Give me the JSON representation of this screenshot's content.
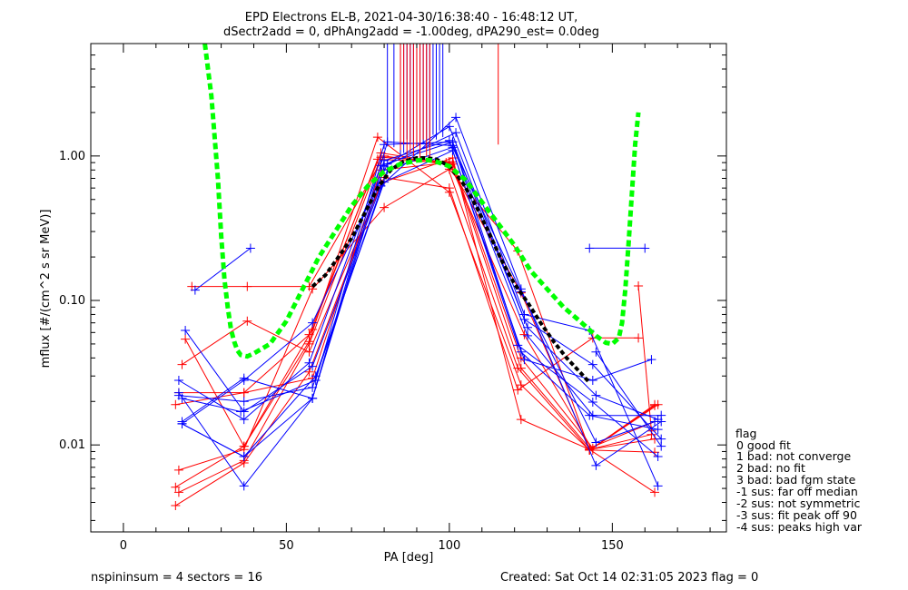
{
  "chart_data": {
    "type": "line",
    "title": "EPD Electrons EL-B, 2021-04-30/16:38:40 - 16:48:12 UT,",
    "subtitle": "dSectr2add = 0, dPhAng2add = -1.00deg, dPA290_est=   0.0deg",
    "xlabel": "PA [deg]",
    "ylabel": "mflux [#/(cm^2 s sr MeV)]",
    "xlim": [
      -10,
      185
    ],
    "ylim": [
      0.0025,
      6.0
    ],
    "yscale": "log",
    "x_ticks": [
      0,
      50,
      100,
      150
    ],
    "x_tick_labels": [
      "0",
      "50",
      "100",
      "150"
    ],
    "y_ticks": [
      0.01,
      0.1,
      1.0
    ],
    "y_tick_labels": [
      "0.01",
      "0.10",
      "1.00"
    ],
    "legend_title": "flag",
    "legend": [
      " 0 good fit",
      " 1 bad: not converge",
      " 2 bad: no fit",
      " 3 bad: bad fgm state",
      "-1 sus: far off median",
      "-2 sus: not symmetric",
      "-3 sus: fit peak off 90",
      "-4 sus: peaks high var"
    ],
    "colors": {
      "red": "#ff0000",
      "blue": "#0000ff",
      "green": "#00ff00",
      "black": "#000000"
    },
    "series_red": [
      [
        [
          16,
          0.0051
        ],
        [
          37,
          0.0098
        ],
        [
          57,
          0.052
        ],
        [
          78,
          1.35
        ],
        [
          100,
          0.56
        ],
        [
          122,
          0.026
        ],
        [
          143,
          0.0092
        ],
        [
          163,
          0.019
        ]
      ],
      [
        [
          16,
          0.019
        ],
        [
          37,
          0.023
        ],
        [
          57,
          0.058
        ],
        [
          79,
          1.05
        ],
        [
          101,
          0.88
        ],
        [
          122,
          0.034
        ],
        [
          143,
          0.0095
        ],
        [
          163,
          0.0145
        ]
      ],
      [
        [
          16,
          0.0038
        ],
        [
          37,
          0.0075
        ],
        [
          57,
          0.032
        ],
        [
          79,
          0.65
        ],
        [
          101,
          0.97
        ],
        [
          122,
          0.015
        ],
        [
          143,
          0.0093
        ],
        [
          163,
          0.0047
        ]
      ],
      [
        [
          17,
          0.0067
        ],
        [
          37,
          0.0093
        ],
        [
          58,
          0.12
        ],
        [
          80,
          0.44
        ],
        [
          100,
          0.81
        ],
        [
          121,
          0.22
        ],
        [
          143,
          0.0093
        ],
        [
          163,
          0.011
        ]
      ],
      [
        [
          17,
          0.0047
        ],
        [
          37,
          0.0078
        ],
        [
          57,
          0.05
        ],
        [
          79,
          0.98
        ],
        [
          101,
          0.91
        ],
        [
          122,
          0.04
        ],
        [
          144,
          0.0095
        ],
        [
          164,
          0.019
        ]
      ],
      [
        [
          18,
          0.036
        ],
        [
          38,
          0.072
        ],
        [
          57,
          0.044
        ],
        [
          80,
          0.71
        ],
        [
          100,
          0.6
        ],
        [
          121,
          0.024
        ],
        [
          144,
          0.055
        ],
        [
          158,
          0.055
        ]
      ],
      [
        [
          21,
          0.125
        ],
        [
          38,
          0.125
        ],
        [
          57,
          0.125
        ],
        [
          80,
          1.0
        ],
        [
          100,
          0.87
        ],
        [
          122,
          0.113
        ],
        [
          143,
          0.0093
        ],
        [
          162,
          0.0118
        ]
      ],
      [
        [
          19,
          0.054
        ],
        [
          37,
          0.0098
        ],
        [
          58,
          0.063
        ],
        [
          78,
          0.95
        ],
        [
          99,
          0.9
        ],
        [
          121,
          0.034
        ],
        [
          143,
          0.0092
        ],
        [
          163,
          0.0187
        ]
      ],
      [
        [
          17,
          0.023
        ],
        [
          37,
          0.023
        ],
        [
          58,
          0.029
        ],
        [
          79,
          0.8
        ],
        [
          100,
          0.9
        ],
        [
          123,
          0.058
        ],
        [
          144,
          0.0092
        ],
        [
          163,
          0.0089
        ]
      ],
      [
        [
          158,
          0.126
        ],
        [
          162,
          0.0125
        ]
      ]
    ],
    "series_blue": [
      [
        [
          17,
          0.023
        ],
        [
          37,
          0.0052
        ],
        [
          58,
          0.021
        ],
        [
          80,
          0.93
        ],
        [
          100,
          1.28
        ],
        [
          121,
          0.049
        ],
        [
          144,
          0.0198
        ],
        [
          164,
          0.0083
        ]
      ],
      [
        [
          18,
          0.014
        ],
        [
          37,
          0.0083
        ],
        [
          58,
          0.021
        ],
        [
          80,
          0.85
        ],
        [
          102,
          1.45
        ],
        [
          123,
          0.08
        ],
        [
          143,
          0.062
        ],
        [
          164,
          0.0052
        ]
      ],
      [
        [
          18,
          0.0145
        ],
        [
          37,
          0.029
        ],
        [
          58,
          0.021
        ],
        [
          81,
          1.25
        ],
        [
          101,
          1.18
        ],
        [
          124,
          0.057
        ],
        [
          144,
          0.016
        ],
        [
          165,
          0.016
        ]
      ],
      [
        [
          19,
          0.062
        ],
        [
          37,
          0.017
        ],
        [
          58,
          0.035
        ],
        [
          79,
          0.62
        ],
        [
          102,
          1.85
        ],
        [
          122,
          0.12
        ],
        [
          145,
          0.0072
        ],
        [
          165,
          0.0145
        ]
      ],
      [
        [
          17,
          0.028
        ],
        [
          37,
          0.015
        ],
        [
          57,
          0.037
        ],
        [
          79,
          0.86
        ],
        [
          101,
          1.25
        ],
        [
          123,
          0.074
        ],
        [
          144,
          0.036
        ],
        [
          165,
          0.011
        ]
      ],
      [
        [
          17,
          0.022
        ],
        [
          37,
          0.02
        ],
        [
          58,
          0.025
        ],
        [
          81,
          0.8
        ],
        [
          101,
          1.15
        ],
        [
          122,
          0.115
        ],
        [
          145,
          0.0104
        ],
        [
          163,
          0.0145
        ]
      ],
      [
        [
          18,
          0.014
        ],
        [
          37,
          0.0083
        ],
        [
          59,
          0.03
        ],
        [
          80,
          0.66
        ],
        [
          101,
          1.09
        ],
        [
          123,
          0.039
        ],
        [
          144,
          0.028
        ],
        [
          162,
          0.039
        ]
      ],
      [
        [
          18,
          0.021
        ],
        [
          36,
          0.017
        ],
        [
          59,
          0.028
        ],
        [
          80,
          1.2
        ],
        [
          101,
          1.25
        ],
        [
          122,
          0.044
        ],
        [
          143,
          0.016
        ],
        [
          164,
          0.0128
        ]
      ],
      [
        [
          18,
          0.014
        ],
        [
          37,
          0.028
        ],
        [
          58,
          0.07
        ],
        [
          81,
          0.88
        ],
        [
          100,
          1.6
        ],
        [
          124,
          0.065
        ],
        [
          145,
          0.022
        ],
        [
          164,
          0.015
        ]
      ],
      [
        [
          22,
          0.118
        ],
        [
          39,
          0.23
        ]
      ],
      [
        [
          143,
          0.23
        ],
        [
          160,
          0.23
        ]
      ],
      [
        [
          145,
          0.044
        ],
        [
          165,
          0.0098
        ]
      ]
    ],
    "green_curve": [
      [
        25,
        6
      ],
      [
        27,
        2.6
      ],
      [
        29,
        0.7
      ],
      [
        30,
        0.28
      ],
      [
        31,
        0.14
      ],
      [
        32,
        0.09
      ],
      [
        33,
        0.063
      ],
      [
        34,
        0.052
      ],
      [
        35,
        0.045
      ],
      [
        36,
        0.042
      ],
      [
        38,
        0.041
      ],
      [
        40,
        0.043
      ],
      [
        45,
        0.05
      ],
      [
        50,
        0.072
      ],
      [
        55,
        0.12
      ],
      [
        60,
        0.2
      ],
      [
        65,
        0.3
      ],
      [
        70,
        0.45
      ],
      [
        75,
        0.62
      ],
      [
        80,
        0.78
      ],
      [
        85,
        0.88
      ],
      [
        90,
        0.93
      ],
      [
        92,
        0.94
      ],
      [
        95,
        0.93
      ],
      [
        100,
        0.85
      ],
      [
        105,
        0.68
      ],
      [
        110,
        0.48
      ],
      [
        115,
        0.34
      ],
      [
        120,
        0.24
      ],
      [
        125,
        0.16
      ],
      [
        130,
        0.12
      ],
      [
        135,
        0.09
      ],
      [
        140,
        0.072
      ],
      [
        145,
        0.057
      ],
      [
        148,
        0.051
      ],
      [
        150,
        0.05
      ],
      [
        152,
        0.055
      ],
      [
        153,
        0.07
      ],
      [
        154,
        0.12
      ],
      [
        155,
        0.25
      ],
      [
        156,
        0.55
      ],
      [
        157,
        1.2
      ],
      [
        158,
        2.0
      ]
    ],
    "black_curve": [
      [
        58,
        0.125
      ],
      [
        62,
        0.15
      ],
      [
        66,
        0.2
      ],
      [
        70,
        0.27
      ],
      [
        74,
        0.4
      ],
      [
        78,
        0.6
      ],
      [
        82,
        0.8
      ],
      [
        86,
        0.92
      ],
      [
        90,
        0.97
      ],
      [
        93,
        0.97
      ],
      [
        96,
        0.95
      ],
      [
        100,
        0.85
      ],
      [
        104,
        0.66
      ],
      [
        108,
        0.46
      ],
      [
        112,
        0.3
      ],
      [
        116,
        0.19
      ],
      [
        120,
        0.13
      ],
      [
        124,
        0.097
      ],
      [
        128,
        0.07
      ],
      [
        132,
        0.052
      ],
      [
        136,
        0.04
      ],
      [
        140,
        0.032
      ],
      [
        143,
        0.027
      ]
    ],
    "spikes_blue": [
      [
        81,
        1.2
      ],
      [
        83,
        1.15
      ],
      [
        85,
        1.0
      ],
      [
        86,
        1.05
      ],
      [
        87,
        1.3
      ],
      [
        88,
        1.25
      ],
      [
        89,
        1.1
      ],
      [
        90,
        1.2
      ],
      [
        91,
        1.15
      ],
      [
        92,
        1.25
      ],
      [
        93,
        1.3
      ],
      [
        94,
        1.2
      ],
      [
        95,
        1.4
      ],
      [
        96,
        1.3
      ],
      [
        97,
        1.5
      ],
      [
        98,
        1.35
      ]
    ],
    "spikes_red": [
      [
        85,
        1.1
      ],
      [
        86,
        1.2
      ],
      [
        87,
        0.95
      ],
      [
        88,
        1.05
      ],
      [
        89,
        1.0
      ],
      [
        90,
        1.15
      ],
      [
        91,
        0.9
      ],
      [
        92,
        1.3
      ],
      [
        93,
        1.0
      ],
      [
        94,
        0.95
      ],
      [
        115,
        1.2
      ]
    ]
  },
  "footer": {
    "left": "nspininsum =  4  sectors = 16",
    "right": "Created: Sat Oct 14 02:31:05 2023   flag = 0"
  }
}
